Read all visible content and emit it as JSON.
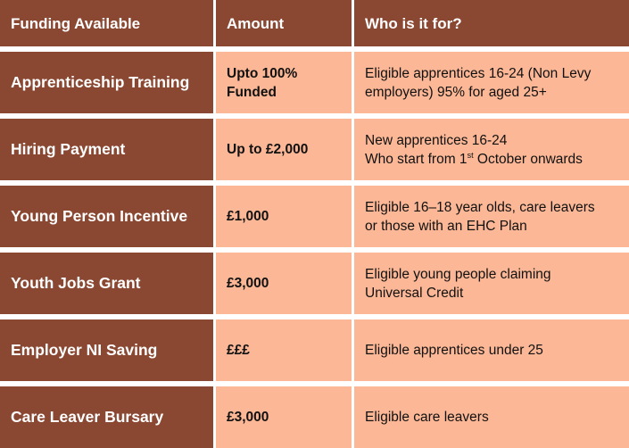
{
  "headers": {
    "funding": "Funding Available",
    "amount": "Amount",
    "who": "Who is it for?"
  },
  "rows": [
    {
      "name": "Apprenticeship Training",
      "amount_lines": [
        "Upto 100%",
        "Funded"
      ],
      "who_lines": [
        "Eligible apprentices 16-24 (Non Levy",
        "employers) 95% for aged 25+"
      ]
    },
    {
      "name": "Hiring Payment",
      "amount": "Up to £2,000",
      "who_line1": "New apprentices 16-24",
      "who_line2_pre": "Who start from 1",
      "who_line2_sup": "st",
      "who_line2_post": " October onwards"
    },
    {
      "name": "Young Person Incentive",
      "amount": "£1,000",
      "who_lines": [
        "Eligible 16–18 year olds, care leavers",
        "or those with an EHC Plan"
      ]
    },
    {
      "name": "Youth Jobs Grant",
      "amount": "£3,000",
      "who_lines": [
        "Eligible young people claiming",
        "Universal Credit"
      ]
    },
    {
      "name": "Employer NI Saving",
      "amount": "£££",
      "who": "Eligible apprentices under 25"
    },
    {
      "name": "Care Leaver Bursary",
      "amount": "£3,000",
      "who": "Eligible care leavers"
    }
  ],
  "colors": {
    "dark_brown": "#8a4731",
    "peach": "#fcb896",
    "text_light": "#ffffff",
    "text_dark": "#111111"
  }
}
